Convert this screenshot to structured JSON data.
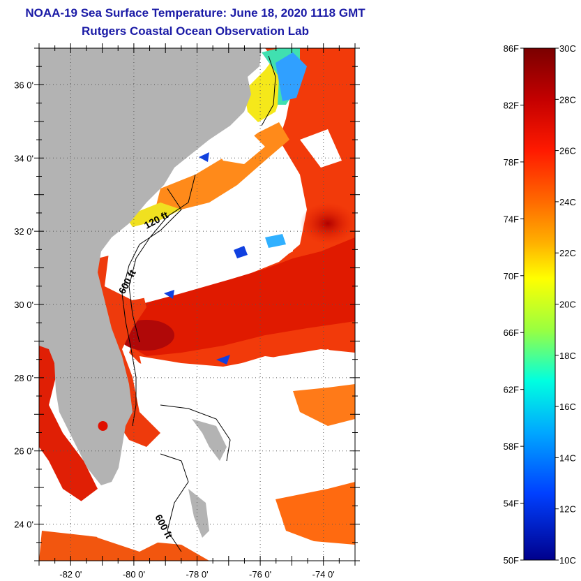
{
  "title": "NOAA-19 Sea Surface Temperature:  June 18, 2020 1118 GMT",
  "subtitle": "Rutgers Coastal Ocean Observation Lab",
  "map": {
    "lon_range": [
      -83,
      -73
    ],
    "lat_range": [
      23,
      37
    ],
    "lat_ticks": [
      {
        "value": 36,
        "label": "36 0'"
      },
      {
        "value": 34,
        "label": "34 0'"
      },
      {
        "value": 32,
        "label": "32 0'"
      },
      {
        "value": 30,
        "label": "30 0'"
      },
      {
        "value": 28,
        "label": "28 0'"
      },
      {
        "value": 26,
        "label": "26 0'"
      },
      {
        "value": 24,
        "label": "24 0'"
      }
    ],
    "lon_ticks": [
      {
        "value": -82,
        "label": "-82 0'"
      },
      {
        "value": -80,
        "label": "-80 0'"
      },
      {
        "value": -78,
        "label": "-78 0'"
      },
      {
        "value": -76,
        "label": "-76 0'"
      },
      {
        "value": -74,
        "label": "-74 0'"
      }
    ],
    "contour_labels": [
      "120 ft",
      "600 ft",
      "600 ft"
    ],
    "colors": {
      "land": "#b3b3b3",
      "cloud": "#ffffff",
      "grid": "#555555"
    }
  },
  "colorbar": {
    "f_labels": [
      "86F",
      "82F",
      "78F",
      "74F",
      "70F",
      "66F",
      "62F",
      "58F",
      "54F",
      "50F"
    ],
    "c_labels": [
      "30C",
      "28C",
      "26C",
      "24C",
      "22C",
      "20C",
      "18C",
      "16C",
      "14C",
      "12C",
      "10C"
    ],
    "gradient_stops": [
      "#7a0000",
      "#c40000",
      "#ff1a00",
      "#ff6a00",
      "#ffb000",
      "#ffff00",
      "#9aff40",
      "#00ffe0",
      "#00a8ff",
      "#0040ff",
      "#00008c"
    ]
  }
}
